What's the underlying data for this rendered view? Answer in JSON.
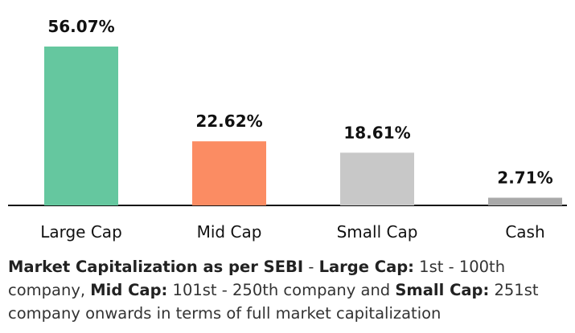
{
  "chart_data": {
    "type": "bar",
    "categories": [
      "Large Cap",
      "Mid Cap",
      "Small Cap",
      "Cash"
    ],
    "values": [
      56.07,
      22.62,
      18.61,
      2.71
    ],
    "value_labels": [
      "56.07%",
      "22.62%",
      "18.61%",
      "2.71%"
    ],
    "colors": [
      "#65c79f",
      "#fb8c63",
      "#c8c8c8",
      "#a9a9a9"
    ],
    "title": "",
    "xlabel": "",
    "ylabel": "",
    "ylim": [
      0,
      56.07
    ],
    "grid": false,
    "legend": "none"
  },
  "footnote": {
    "b1": "Market Capitalization as per SEBI",
    "t1": " - ",
    "b2": "Large Cap:",
    "t2": " 1st - 100th company, ",
    "b3": "Mid Cap:",
    "t3": " 101st - 250th company and ",
    "b4": "Small Cap:",
    "t4": " 251st company onwards in terms of full market capitalization"
  }
}
